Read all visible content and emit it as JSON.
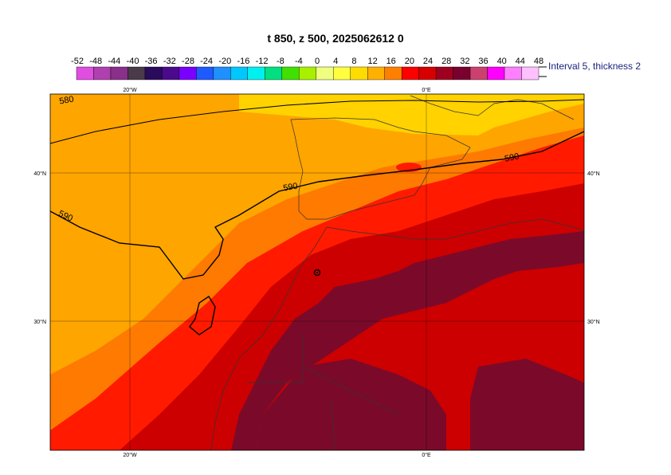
{
  "title": "t 850, z 500, 2025062612 0",
  "legend": {
    "labels": [
      "-52",
      "-48",
      "-44",
      "-40",
      "-36",
      "-32",
      "-28",
      "-24",
      "-20",
      "-16",
      "-12",
      "-8",
      "-4",
      "0",
      "4",
      "8",
      "12",
      "16",
      "20",
      "24",
      "28",
      "32",
      "36",
      "40",
      "44",
      "48"
    ],
    "colors": [
      "#e04ee0",
      "#b040b0",
      "#8a2f8a",
      "#4a3a4a",
      "#2a0a5a",
      "#4b0a8c",
      "#7a00ff",
      "#1e5aff",
      "#1e90ff",
      "#00c8ff",
      "#00f0f0",
      "#00e080",
      "#40e000",
      "#a8f000",
      "#f0ff80",
      "#ffff40",
      "#ffdc00",
      "#ffb000",
      "#ff8000",
      "#ff0000",
      "#d60000",
      "#a00020",
      "#7a0030",
      "#cc4070",
      "#ff00ff",
      "#ff80ff",
      "#ffc0ff"
    ],
    "interval_text": "Interval 5, thickness 2"
  },
  "map": {
    "lon_labels": [
      "20°W",
      "0°E",
      "20°W",
      "0°E"
    ],
    "lat_labels": [
      "40°N",
      "30°N",
      "40°N",
      "30°N"
    ],
    "contour_labels": [
      "580",
      "590",
      "590",
      "590"
    ]
  },
  "colors": {
    "t16_20": "#ffa500",
    "t20_24": "#ff7a00",
    "t24_28": "#ff1a00",
    "t28_32": "#cc0000",
    "t32_36": "#7b0a2a",
    "t12_16": "#ffd200"
  }
}
